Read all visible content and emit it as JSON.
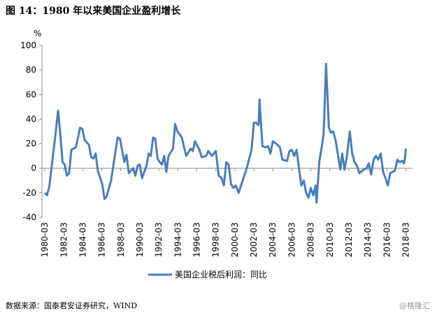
{
  "chart_data": {
    "type": "line",
    "title": "图 14：1980 年以来美国企业盈利增长",
    "y_label": "%",
    "source": "数据来源：国泰君安证券研究，WIND",
    "watermark": "@格隆汇",
    "legend_position": "bottom",
    "xlim": [
      1979.7,
      2018.7
    ],
    "xticks": [
      {
        "value": 1980,
        "label": "1980-03"
      },
      {
        "value": 1982,
        "label": "1982-03"
      },
      {
        "value": 1984,
        "label": "1984-03"
      },
      {
        "value": 1986,
        "label": "1986-03"
      },
      {
        "value": 1988,
        "label": "1988-03"
      },
      {
        "value": 1990,
        "label": "1990-03"
      },
      {
        "value": 1992,
        "label": "1992-03"
      },
      {
        "value": 1994,
        "label": "1994-03"
      },
      {
        "value": 1996,
        "label": "1996-03"
      },
      {
        "value": 1998,
        "label": "1998-03"
      },
      {
        "value": 2000,
        "label": "2000-03"
      },
      {
        "value": 2002,
        "label": "2002-03"
      },
      {
        "value": 2004,
        "label": "2004-03"
      },
      {
        "value": 2006,
        "label": "2006-03"
      },
      {
        "value": 2008,
        "label": "2008-03"
      },
      {
        "value": 2010,
        "label": "2010-03"
      },
      {
        "value": 2012,
        "label": "2012-03"
      },
      {
        "value": 2014,
        "label": "2014-03"
      },
      {
        "value": 2016,
        "label": "2016-03"
      },
      {
        "value": 2018,
        "label": "2018-03"
      }
    ],
    "ylim": [
      -40,
      100
    ],
    "yticks": [
      -40,
      -20,
      0,
      20,
      40,
      60,
      80,
      100
    ],
    "x": [
      1980.0,
      1980.23,
      1980.47,
      1980.93,
      1981.16,
      1981.4,
      1981.63,
      1981.86,
      1982.09,
      1982.33,
      1982.56,
      1982.79,
      1983.26,
      1983.72,
      1983.95,
      1984.19,
      1984.65,
      1984.88,
      1985.12,
      1985.35,
      1985.58,
      1986.05,
      1986.28,
      1986.51,
      1986.98,
      1987.44,
      1987.67,
      1987.91,
      1988.37,
      1988.6,
      1988.84,
      1989.3,
      1989.53,
      1989.77,
      1990.0,
      1990.23,
      1990.7,
      1990.93,
      1991.16,
      1991.39,
      1991.63,
      1991.86,
      1992.09,
      1992.33,
      1992.56,
      1992.79,
      1993.02,
      1993.49,
      1993.72,
      1993.95,
      1994.42,
      1994.88,
      1995.35,
      1995.58,
      1995.81,
      1996.28,
      1996.51,
      1996.98,
      1997.2,
      1997.6,
      1998.0,
      1998.3,
      1998.6,
      1998.85,
      1999.1,
      1999.35,
      1999.6,
      1999.85,
      2000.1,
      2000.4,
      2001.25,
      2001.75,
      2002.0,
      2002.25,
      2002.5,
      2002.6,
      2002.9,
      2003.25,
      2003.5,
      2003.75,
      2004.0,
      2004.5,
      2004.75,
      2005.0,
      2005.5,
      2005.75,
      2006.0,
      2006.25,
      2006.5,
      2006.75,
      2007.0,
      2007.25,
      2007.5,
      2007.75,
      2008.0,
      2008.25,
      2008.5,
      2008.6,
      2008.9,
      2009.1,
      2009.35,
      2009.6,
      2009.9,
      2010.1,
      2010.35,
      2010.6,
      2010.85,
      2011.1,
      2011.3,
      2011.55,
      2011.8,
      2012.1,
      2012.35,
      2012.6,
      2012.85,
      2013.1,
      2013.6,
      2013.85,
      2014.1,
      2014.35,
      2014.6,
      2014.85,
      2015.1,
      2015.35,
      2015.6,
      2015.85,
      2016.1,
      2016.35,
      2016.85,
      2017.1,
      2017.35,
      2017.6,
      2017.8,
      2017.9,
      2018.0
    ],
    "series": [
      {
        "name": "美国企业税后利润：同比",
        "color": "#4a7ebb",
        "values": [
          -20,
          -22,
          -15,
          15,
          30,
          47,
          28,
          5,
          3,
          -6,
          -4,
          15,
          17,
          33,
          32,
          23,
          19,
          9,
          8,
          12,
          -2,
          -13,
          -25,
          -23,
          -10,
          14,
          25,
          24,
          5,
          11,
          -4,
          0,
          -6,
          2,
          3,
          -8,
          2,
          12,
          10,
          25,
          24,
          8,
          5,
          3,
          10,
          -3,
          10,
          16,
          36,
          30,
          25,
          10,
          16,
          14,
          22,
          15,
          9,
          10,
          14,
          10,
          14,
          -6,
          -8,
          -14,
          5,
          3,
          -13,
          -16,
          -14,
          -20,
          0,
          15,
          37,
          37,
          35,
          56,
          18,
          17,
          18,
          12,
          22,
          19,
          17,
          7,
          6,
          14,
          15,
          10,
          15,
          0,
          -14,
          -10,
          -20,
          -24,
          -16,
          -22,
          -14,
          -28,
          6,
          15,
          28,
          85,
          33,
          29,
          30,
          23,
          11,
          -1,
          12,
          -1,
          10,
          30,
          12,
          5,
          2,
          -4,
          -1,
          0,
          4,
          -5,
          7,
          10,
          7,
          12,
          -3,
          -8,
          -14,
          -4,
          -2,
          7,
          5,
          6,
          4,
          8,
          16
        ]
      }
    ]
  }
}
